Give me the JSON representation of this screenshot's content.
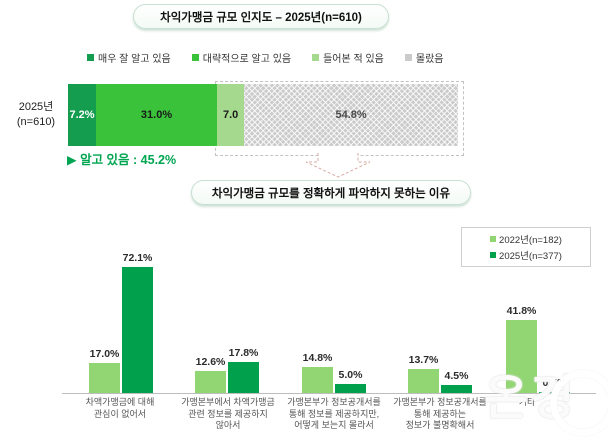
{
  "colors": {
    "very_well": "#149c4f",
    "roughly": "#3bc23b",
    "heard_of": "#a5da8e",
    "did_not_know": "#cbcbcb",
    "bar_2022": "#92d673",
    "bar_2025": "#00a04c",
    "accent_green": "#00a551"
  },
  "top_chart": {
    "title": "차익가맹금 규모 인지도 – 2025년(n=610)",
    "row_label": "2025년\n(n=610)",
    "legend": [
      {
        "label": "매우 잘 알고 있음",
        "color": "#149c4f"
      },
      {
        "label": "대략적으로 알고 있음",
        "color": "#3bc23b"
      },
      {
        "label": "들어본 적 있음",
        "color": "#a5da8e"
      },
      {
        "label": "몰랐음",
        "color": "#cbcbcb"
      }
    ],
    "segments": [
      {
        "label": "7.2%",
        "value": 7.2
      },
      {
        "label": "31.0%",
        "value": 31.0
      },
      {
        "label": "7.0",
        "value": 7.0
      },
      {
        "label": "54.8%",
        "value": 54.8
      }
    ],
    "summary": "▶ 알고 있음 : 45.2%"
  },
  "bottom_chart": {
    "title": "차익가맹금 규모를 정확하게 파악하지 못하는 이유",
    "legend": [
      {
        "label": "2022년(n=182)",
        "color": "#92d673"
      },
      {
        "label": "2025년(n=377)",
        "color": "#00a04c"
      }
    ]
  },
  "watermark": {
    "text": "온경"
  },
  "chart_data": [
    {
      "type": "bar",
      "subtype": "horizontal-stacked",
      "title": "차익가맹금 규모 인지도 – 2025년(n=610)",
      "categories": [
        "2025년 (n=610)"
      ],
      "series": [
        {
          "name": "매우 잘 알고 있음",
          "values": [
            7.2
          ]
        },
        {
          "name": "대략적으로 알고 있음",
          "values": [
            31.0
          ]
        },
        {
          "name": "들어본 적 있음",
          "values": [
            7.0
          ]
        },
        {
          "name": "몰랐음",
          "values": [
            54.8
          ]
        }
      ],
      "unit": "%",
      "xlim": [
        0,
        100
      ],
      "annotations": [
        "알고 있음 : 45.2%"
      ],
      "legend_position": "top",
      "grid": false
    },
    {
      "type": "bar",
      "subtype": "grouped-vertical",
      "title": "차익가맹금 규모를 정확하게 파악하지 못하는 이유",
      "categories": [
        "차액가맹금에 대해\n관심이 없어서",
        "가맹본부에서 차액가맹금\n관련 정보를 제공하지\n않아서",
        "가맹본부가 정보공개서를\n통해 정보를 제공하지만,\n어떻게 보는지 몰라서",
        "가맹본부가 정보공개서를\n통해 제공하는\n정보가 불명확해서",
        "기타"
      ],
      "series": [
        {
          "name": "2022년(n=182)",
          "values": [
            17.0,
            12.6,
            14.8,
            13.7,
            41.8
          ]
        },
        {
          "name": "2025년(n=377)",
          "values": [
            72.1,
            17.8,
            5.0,
            4.5,
            0.5
          ]
        }
      ],
      "unit": "%",
      "ylim": [
        0,
        80
      ],
      "grid": false,
      "legend_position": "top-right"
    }
  ]
}
